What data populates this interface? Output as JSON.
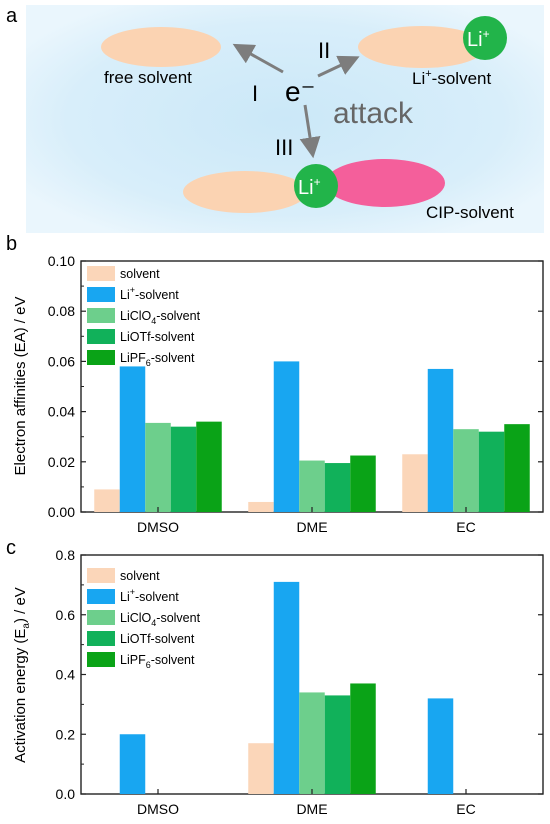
{
  "colors": {
    "solvent": "#fbd6b9",
    "li": "#18a6f1",
    "liclo4": "#6dcf8c",
    "liotf": "#11b15a",
    "lipf6": "#0aa317",
    "ellipse": "#fbd3b2",
    "cip": "#f45f9b",
    "li_ion": "#22b44a",
    "arrow": "#7d7d7d",
    "bg_glow": "#b9e1f6"
  },
  "panel_a": {
    "label": "a",
    "free_solvent": "free solvent",
    "li_solvent_main": "Li",
    "li_solvent_sup": "+",
    "li_solvent_tail": "-solvent",
    "cip_solvent": "CIP-solvent",
    "electron": "e⁻",
    "attack": "attack",
    "path_I": "I",
    "path_II": "II",
    "path_III": "III",
    "li_main": "Li",
    "li_sup": "+"
  },
  "legend": [
    {
      "main": "solvent",
      "sub": "",
      "tail": ""
    },
    {
      "main": "Li",
      "sup": "+",
      "tail": "-solvent"
    },
    {
      "main": "LiClO",
      "sub": "4",
      "tail": "-solvent"
    },
    {
      "main": "LiOTf-solvent",
      "sub": "",
      "tail": ""
    },
    {
      "main": "LiPF",
      "sub": "6",
      "tail": "-solvent"
    }
  ],
  "chart_data": [
    {
      "panel": "b",
      "type": "bar",
      "categories": [
        "DMSO",
        "DME",
        "EC"
      ],
      "ylabel": "Electron affinities (EA) / eV",
      "ylim": [
        0,
        0.1
      ],
      "yticks": [
        "0.00",
        "0.02",
        "0.04",
        "0.06",
        "0.08",
        "0.10"
      ],
      "series": [
        {
          "name": "solvent",
          "values": [
            0.009,
            0.004,
            0.023
          ]
        },
        {
          "name": "Li+-solvent",
          "values": [
            0.058,
            0.06,
            0.057
          ]
        },
        {
          "name": "LiClO4-solvent",
          "values": [
            0.0355,
            0.0205,
            0.033
          ]
        },
        {
          "name": "LiOTf-solvent",
          "values": [
            0.034,
            0.0195,
            0.032
          ]
        },
        {
          "name": "LiPF6-solvent",
          "values": [
            0.036,
            0.0225,
            0.035
          ]
        }
      ]
    },
    {
      "panel": "c",
      "type": "bar",
      "categories": [
        "DMSO",
        "DME",
        "EC"
      ],
      "ylabel": "Activation energy (Ea) / eV",
      "ylabel_main": "Activation energy (E",
      "ylabel_sub": "a",
      "ylabel_tail": ") / eV",
      "ylim": [
        0,
        0.8
      ],
      "yticks": [
        "0.0",
        "0.2",
        "0.4",
        "0.6",
        "0.8"
      ],
      "series": [
        {
          "name": "solvent",
          "values": [
            0,
            0.17,
            0
          ]
        },
        {
          "name": "Li+-solvent",
          "values": [
            0.2,
            0.71,
            0.32
          ]
        },
        {
          "name": "LiClO4-solvent",
          "values": [
            0,
            0.34,
            0
          ]
        },
        {
          "name": "LiOTf-solvent",
          "values": [
            0,
            0.33,
            0
          ]
        },
        {
          "name": "LiPF6-solvent",
          "values": [
            0,
            0.37,
            0
          ]
        }
      ]
    }
  ]
}
